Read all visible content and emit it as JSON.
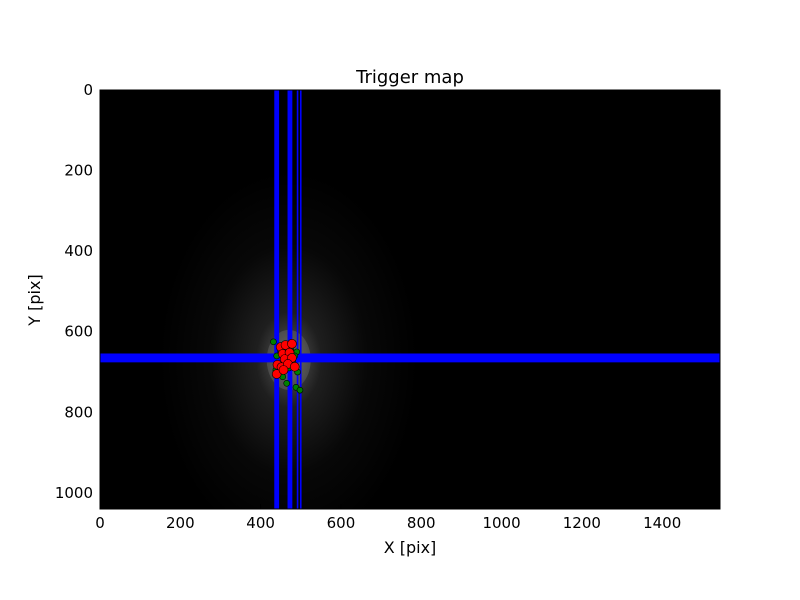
{
  "chart_data": {
    "type": "scatter",
    "title": "Trigger map",
    "xlabel": "X [pix]",
    "ylabel": "Y [pix]",
    "xlim": [
      0,
      1544
    ],
    "ylim": [
      1040,
      0
    ],
    "xticks": [
      0,
      200,
      400,
      600,
      800,
      1000,
      1200,
      1400
    ],
    "yticks": [
      0,
      200,
      400,
      600,
      800,
      1000
    ],
    "background": "#000000",
    "grid": false,
    "legend": "none",
    "colors": {
      "lines": "#0000ff",
      "series_green": "#008000",
      "series_red": "#ff0000",
      "glow": "#ffffff"
    },
    "vertical_lines": [
      {
        "x": 440,
        "width": 12
      },
      {
        "x": 473,
        "width": 12
      },
      {
        "x": 492,
        "width": 4
      },
      {
        "x": 500,
        "width": 4
      }
    ],
    "horizontal_lines": [
      {
        "y": 665,
        "width": 22
      }
    ],
    "glow_center": {
      "x": 470,
      "y": 670
    },
    "series": [
      {
        "marker": "green",
        "points": [
          [
            432,
            625
          ],
          [
            455,
            640
          ],
          [
            475,
            645
          ],
          [
            490,
            650
          ],
          [
            440,
            660
          ],
          [
            460,
            665
          ],
          [
            480,
            672
          ],
          [
            445,
            685
          ],
          [
            470,
            690
          ],
          [
            492,
            700
          ],
          [
            455,
            712
          ],
          [
            465,
            728
          ],
          [
            488,
            738
          ],
          [
            438,
            695
          ],
          [
            498,
            745
          ],
          [
            450,
            650
          ],
          [
            485,
            660
          ]
        ]
      },
      {
        "marker": "red",
        "points": [
          [
            450,
            638
          ],
          [
            462,
            633
          ],
          [
            478,
            630
          ],
          [
            455,
            655
          ],
          [
            472,
            652
          ],
          [
            460,
            668
          ],
          [
            478,
            665
          ],
          [
            442,
            682
          ],
          [
            452,
            688
          ],
          [
            468,
            680
          ],
          [
            485,
            687
          ],
          [
            440,
            705
          ],
          [
            457,
            695
          ]
        ]
      }
    ]
  }
}
